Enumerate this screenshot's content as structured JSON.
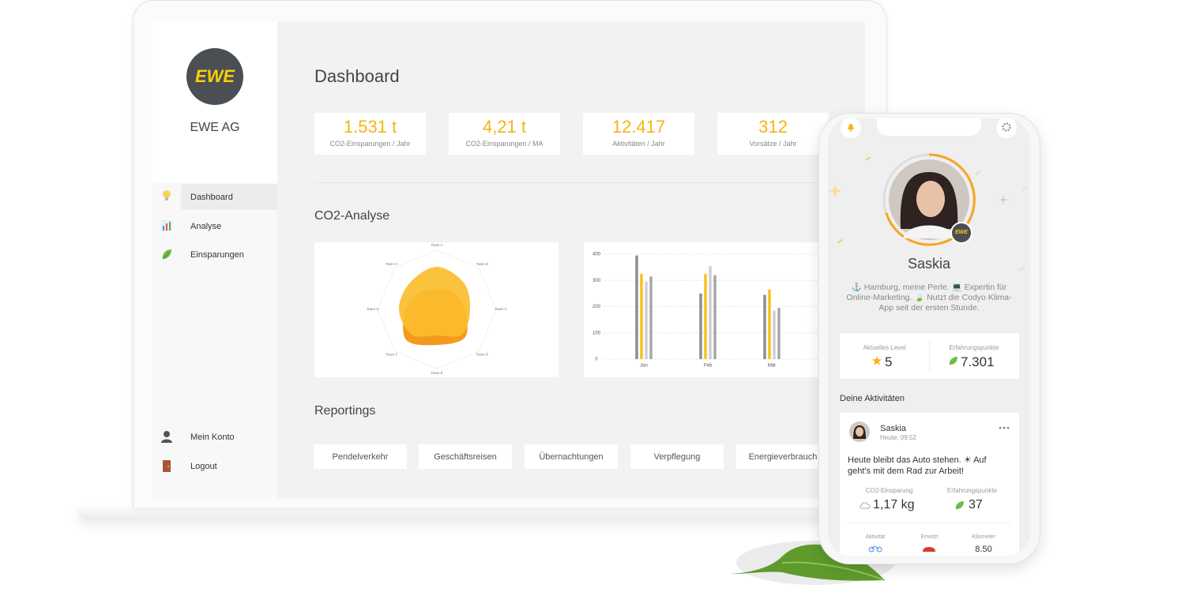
{
  "sidebar": {
    "logo": "EWE",
    "company": "EWE AG",
    "nav": [
      "Dashboard",
      "Analyse",
      "Einsparungen"
    ],
    "account_nav": [
      "Mein Konto",
      "Logout"
    ]
  },
  "dashboard": {
    "title": "Dashboard",
    "kpis": [
      {
        "value": "1.531 t",
        "label": "CO2-Einsparungen / Jahr"
      },
      {
        "value": "4,21 t",
        "label": "CO2-Einsparungen / MA"
      },
      {
        "value": "12.417",
        "label": "Aktivitäten / Jahr"
      },
      {
        "value": "312",
        "label": "Vorsätze / Jahr"
      }
    ],
    "analysis_title": "CO2-Analyse",
    "reportings_title": "Reportings",
    "reportings": [
      "Pendelverkehr",
      "Geschäftsreisen",
      "Übernachtungen",
      "Verpflegung",
      "Energieverbrauch"
    ]
  },
  "chart_data": [
    {
      "type": "radar",
      "categories": [
        "Team A",
        "Team B",
        "Team C",
        "Team D",
        "Team E",
        "Team F",
        "Team G",
        "Team H"
      ],
      "rlim": [
        0,
        100
      ],
      "series": [
        {
          "color": "#f39a1e",
          "values": [
            33,
            40,
            47,
            67,
            60,
            73,
            53,
            40
          ]
        },
        {
          "color": "#fbbd2c",
          "values": [
            72,
            64,
            56,
            60,
            44,
            60,
            64,
            64
          ]
        }
      ]
    },
    {
      "type": "bar",
      "categories": [
        "Jan",
        "Feb",
        "Mär"
      ],
      "ylim": [
        0,
        400
      ],
      "yticks": [
        0,
        100,
        200,
        300,
        400
      ],
      "grid": true,
      "series": [
        {
          "color": "#8e8e90",
          "values": [
            395,
            250,
            245
          ]
        },
        {
          "color": "#f7c21b",
          "values": [
            325,
            325,
            265
          ]
        },
        {
          "color": "#cfcfd1",
          "values": [
            295,
            355,
            185
          ]
        },
        {
          "color": "#a7a7ad",
          "values": [
            315,
            320,
            195
          ]
        }
      ]
    }
  ],
  "phone": {
    "name": "Saskia",
    "badge": "EWE",
    "bio": "⚓ Hamburg, meine Perle. 💻 Expertin für Online-Marketing. 🍃 Nutzt die Codyo Klima-App seit der ersten Stunde.",
    "stats": [
      {
        "label": "Aktuelles Level",
        "value": "5"
      },
      {
        "label": "Erfahrungspunkte",
        "value": "7.301"
      }
    ],
    "activities_title": "Deine Aktivitäten",
    "post": {
      "author": "Saskia",
      "time": "Heute, 09:52",
      "text": "Heute bleibt das Auto stehen. ☀ Auf geht's mit dem Rad zur Arbeit!",
      "stats": [
        {
          "label": "CO2-Einsparung",
          "value": "1,17 kg"
        },
        {
          "label": "Erfahrungspunkte",
          "value": "37"
        }
      ],
      "details": [
        {
          "label": "Aktivität"
        },
        {
          "label": "Ersetzt"
        },
        {
          "label": "Kilometer",
          "value": "8.50"
        }
      ]
    }
  }
}
